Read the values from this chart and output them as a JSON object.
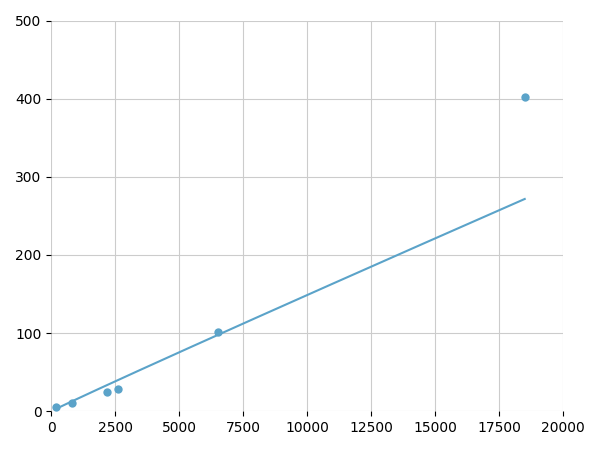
{
  "x": [
    200,
    800,
    2200,
    2600,
    6500,
    18500
  ],
  "y": [
    5,
    10,
    25,
    28,
    102,
    402
  ],
  "line_color": "#5ba3c9",
  "marker_color": "#5ba3c9",
  "marker_size": 6,
  "line_width": 1.5,
  "xlim": [
    0,
    20000
  ],
  "ylim": [
    0,
    500
  ],
  "xticks": [
    0,
    2500,
    5000,
    7500,
    10000,
    12500,
    15000,
    17500,
    20000
  ],
  "yticks": [
    0,
    100,
    200,
    300,
    400,
    500
  ],
  "grid_color": "#cccccc",
  "background_color": "#ffffff",
  "tick_fontsize": 10
}
